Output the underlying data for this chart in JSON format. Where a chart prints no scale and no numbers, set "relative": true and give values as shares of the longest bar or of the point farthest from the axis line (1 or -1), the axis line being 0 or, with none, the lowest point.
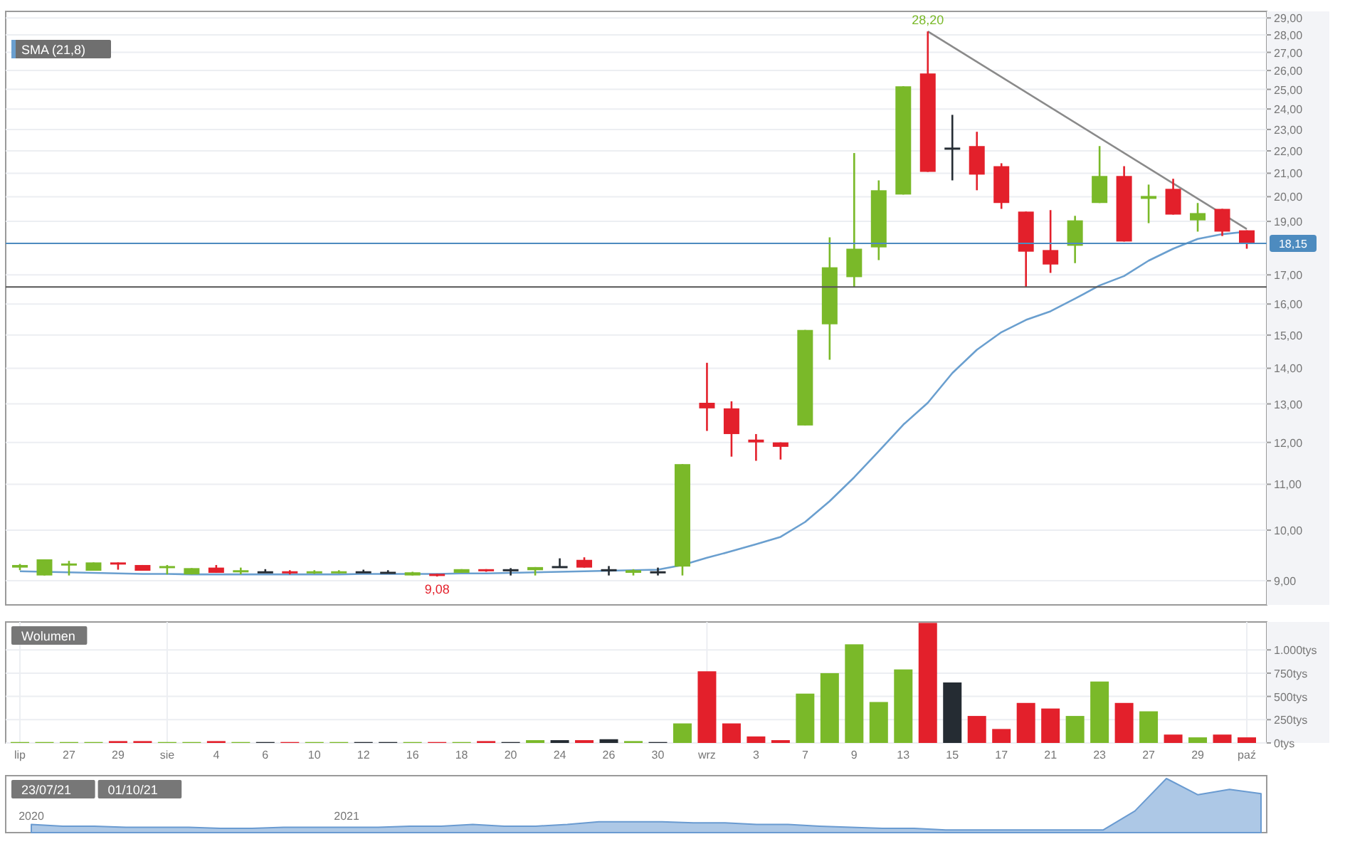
{
  "chart_data": [
    {
      "type": "candlestick",
      "categories": [
        null,
        null,
        null,
        null,
        null,
        null,
        null,
        null,
        null,
        null,
        null,
        null,
        null,
        null,
        null,
        null,
        null,
        null,
        null,
        null,
        null,
        null,
        null,
        null,
        null,
        null,
        null,
        null,
        null,
        null,
        null,
        null,
        null,
        null,
        null,
        null,
        null,
        null,
        null,
        null,
        null,
        null,
        null,
        null,
        null,
        null,
        null,
        null,
        null,
        null,
        null
      ],
      "ohlc": [
        [
          9.25,
          9.32,
          9.2,
          9.3
        ],
        [
          9.1,
          9.41,
          9.1,
          9.41
        ],
        [
          9.3,
          9.38,
          9.1,
          9.33
        ],
        [
          9.19,
          9.35,
          9.19,
          9.35
        ],
        [
          9.35,
          9.35,
          9.21,
          9.33
        ],
        [
          9.3,
          9.3,
          9.19,
          9.19
        ],
        [
          9.25,
          9.3,
          9.12,
          9.28
        ],
        [
          9.12,
          9.24,
          9.12,
          9.24
        ],
        [
          9.25,
          9.3,
          9.15,
          9.15
        ],
        [
          9.18,
          9.25,
          9.12,
          9.2
        ],
        [
          9.18,
          9.22,
          9.15,
          9.18
        ],
        [
          9.18,
          9.2,
          9.12,
          9.15
        ],
        [
          9.15,
          9.2,
          9.13,
          9.18
        ],
        [
          9.16,
          9.2,
          9.14,
          9.18
        ],
        [
          9.18,
          9.21,
          9.15,
          9.18
        ],
        [
          9.17,
          9.2,
          9.14,
          9.17
        ],
        [
          9.1,
          9.17,
          9.1,
          9.16
        ],
        [
          9.13,
          9.13,
          9.08,
          9.1
        ],
        [
          9.15,
          9.22,
          9.15,
          9.22
        ],
        [
          9.22,
          9.22,
          9.17,
          9.19
        ],
        [
          9.22,
          9.24,
          9.1,
          9.22
        ],
        [
          9.2,
          9.26,
          9.1,
          9.26
        ],
        [
          9.28,
          9.43,
          9.25,
          9.28
        ],
        [
          9.4,
          9.45,
          9.25,
          9.25
        ],
        [
          9.22,
          9.28,
          9.1,
          9.22
        ],
        [
          9.15,
          9.22,
          9.1,
          9.2
        ],
        [
          9.18,
          9.25,
          9.1,
          9.18
        ],
        [
          9.27,
          11.47,
          9.1,
          11.47
        ],
        [
          13.03,
          14.16,
          12.29,
          12.88
        ],
        [
          12.88,
          13.07,
          11.65,
          12.21
        ],
        [
          12.07,
          12.21,
          11.55,
          12.0
        ],
        [
          12.0,
          12.0,
          11.58,
          11.89
        ],
        [
          12.43,
          15.16,
          12.43,
          15.16
        ],
        [
          15.34,
          18.38,
          14.25,
          17.27
        ],
        [
          16.92,
          21.9,
          16.57,
          17.95
        ],
        [
          18.0,
          20.69,
          17.53,
          20.27
        ],
        [
          20.09,
          25.16,
          20.09,
          25.16
        ],
        [
          25.84,
          28.2,
          21.06,
          21.06
        ],
        [
          22.15,
          23.71,
          20.69,
          22.15
        ],
        [
          22.22,
          22.89,
          20.27,
          20.94
        ],
        [
          21.31,
          21.44,
          19.5,
          19.74
        ],
        [
          19.39,
          19.39,
          16.57,
          17.84
        ],
        [
          17.9,
          19.45,
          17.07,
          17.37
        ],
        [
          18.06,
          19.22,
          17.42,
          19.04
        ],
        [
          19.74,
          22.22,
          19.74,
          20.88
        ],
        [
          20.88,
          21.31,
          18.22,
          18.22
        ],
        [
          19.91,
          20.51,
          18.93,
          20.03
        ],
        [
          20.33,
          20.76,
          19.27,
          19.27
        ],
        [
          19.04,
          19.74,
          18.6,
          19.33
        ],
        [
          19.5,
          19.5,
          18.43,
          18.6
        ],
        [
          18.65,
          18.65,
          17.95,
          18.15
        ]
      ],
      "series": [
        {
          "name": "SMA (21,8)",
          "type": "line",
          "color": "#6a9fcf",
          "values": [
            9.18,
            9.17,
            9.16,
            9.15,
            9.14,
            9.13,
            9.13,
            9.12,
            9.12,
            9.12,
            9.12,
            9.12,
            9.12,
            9.12,
            9.13,
            9.13,
            9.13,
            9.13,
            9.14,
            9.14,
            9.15,
            9.16,
            9.17,
            9.18,
            9.19,
            9.2,
            9.21,
            9.3,
            9.44,
            9.57,
            9.71,
            9.86,
            10.17,
            10.62,
            11.16,
            11.78,
            12.45,
            13.03,
            13.86,
            14.55,
            15.09,
            15.48,
            15.76,
            16.18,
            16.63,
            16.96,
            17.51,
            17.95,
            18.32,
            18.5,
            18.6
          ]
        },
        {
          "type": "line",
          "color": "#8a8a8a",
          "values": [
            null,
            null,
            null,
            null,
            null,
            null,
            null,
            null,
            null,
            null,
            null,
            null,
            null,
            null,
            null,
            null,
            null,
            null,
            null,
            null,
            null,
            null,
            null,
            null,
            null,
            null,
            null,
            null,
            null,
            null,
            null,
            null,
            null,
            null,
            null,
            null,
            null,
            28.2,
            null,
            null,
            null,
            null,
            null,
            null,
            null,
            null,
            null,
            null,
            null,
            null,
            18.7
          ]
        }
      ],
      "ylim": [
        8.56,
        29.4
      ],
      "yticks": [
        {
          "value": 9,
          "label": "9,00"
        },
        {
          "value": 10,
          "label": "10,00"
        },
        {
          "value": 11,
          "label": "11,00"
        },
        {
          "value": 12,
          "label": "12,00"
        },
        {
          "value": 13,
          "label": "13,00"
        },
        {
          "value": 14,
          "label": "14,00"
        },
        {
          "value": 15,
          "label": "15,00"
        },
        {
          "value": 16,
          "label": "16,00"
        },
        {
          "value": 17,
          "label": "17,00"
        },
        {
          "value": 19,
          "label": "19,00"
        },
        {
          "value": 20,
          "label": "20,00"
        },
        {
          "value": 21,
          "label": "21,00"
        },
        {
          "value": 22,
          "label": "22,00"
        },
        {
          "value": 23,
          "label": "23,00"
        },
        {
          "value": 24,
          "label": "24,00"
        },
        {
          "value": 25,
          "label": "25,00"
        },
        {
          "value": 26,
          "label": "26,00"
        },
        {
          "value": 27,
          "label": "27,00"
        },
        {
          "value": 28,
          "label": "28,00"
        },
        {
          "value": 29,
          "label": "29,00"
        }
      ],
      "log": true,
      "grid": "y",
      "legend": "top left",
      "tick_labels": "y",
      "ref_lines": [
        {
          "axis": "y",
          "value": 18.15,
          "label": "18,15",
          "color": "#4d8bbf"
        },
        {
          "axis": "y",
          "value": 16.58,
          "label": null,
          "color": "#555555"
        }
      ],
      "annotations": [
        {
          "text": "28,20",
          "y": 28.2
        },
        {
          "text": "9,08",
          "y": 9.08
        }
      ]
    },
    {
      "type": "bar",
      "title": "Wolumen",
      "categories": [
        "lip",
        null,
        "27",
        null,
        "29",
        null,
        "sie",
        null,
        "4",
        null,
        "6",
        null,
        "10",
        null,
        "12",
        null,
        "16",
        null,
        "18",
        null,
        "20",
        null,
        "24",
        null,
        "26",
        null,
        "30",
        null,
        "wrz",
        null,
        "3",
        null,
        "7",
        null,
        "9",
        null,
        "13",
        null,
        "15",
        null,
        "17",
        null,
        "21",
        null,
        "23",
        null,
        "27",
        null,
        "29",
        null,
        "paź"
      ],
      "values": [
        10,
        10,
        10,
        10,
        20,
        20,
        10,
        10,
        20,
        10,
        10,
        10,
        10,
        10,
        10,
        10,
        10,
        10,
        10,
        20,
        10,
        30,
        30,
        30,
        40,
        20,
        10,
        210,
        770,
        210,
        70,
        30,
        530,
        750,
        1060,
        440,
        790,
        1290,
        650,
        290,
        150,
        430,
        370,
        290,
        660,
        430,
        340,
        90,
        60,
        90,
        60
      ],
      "colors": [
        "#7ab929",
        "#7ab929",
        "#7ab929",
        "#7ab929",
        "#e3202b",
        "#e3202b",
        "#7ab929",
        "#7ab929",
        "#e3202b",
        "#7ab929",
        "#252c33",
        "#e3202b",
        "#7ab929",
        "#7ab929",
        "#252c33",
        "#252c33",
        "#7ab929",
        "#e3202b",
        "#7ab929",
        "#e3202b",
        "#252c33",
        "#7ab929",
        "#252c33",
        "#e3202b",
        "#252c33",
        "#7ab929",
        "#252c33",
        "#7ab929",
        "#e3202b",
        "#e3202b",
        "#e3202b",
        "#e3202b",
        "#7ab929",
        "#7ab929",
        "#7ab929",
        "#7ab929",
        "#7ab929",
        "#e3202b",
        "#252c33",
        "#e3202b",
        "#e3202b",
        "#e3202b",
        "#e3202b",
        "#7ab929",
        "#7ab929",
        "#e3202b",
        "#7ab929",
        "#e3202b",
        "#7ab929",
        "#e3202b",
        "#e3202b"
      ],
      "ylim": [
        0,
        1300
      ],
      "yticks": [
        {
          "value": 0,
          "label": "0tys"
        },
        {
          "value": 250,
          "label": "250tys"
        },
        {
          "value": 500,
          "label": "500tys"
        },
        {
          "value": 750,
          "label": "750tys"
        },
        {
          "value": 1000,
          "label": "1.000tys"
        }
      ],
      "grid": true
    },
    {
      "type": "area",
      "relative": true,
      "color": "#6a9bd1",
      "categories": [
        "2020",
        null,
        null,
        null,
        null,
        null,
        null,
        null,
        null,
        null,
        "2021",
        null,
        null,
        null,
        null,
        null,
        null,
        null,
        null,
        null,
        null,
        null,
        null,
        null,
        null,
        null,
        null,
        null,
        null,
        null,
        null,
        null,
        null,
        null,
        null,
        null,
        null,
        null,
        null,
        null
      ],
      "values": [
        0.15,
        0.12,
        0.12,
        0.1,
        0.1,
        0.1,
        0.08,
        0.08,
        0.1,
        0.1,
        0.1,
        0.1,
        0.12,
        0.12,
        0.15,
        0.12,
        0.12,
        0.15,
        0.2,
        0.2,
        0.2,
        0.18,
        0.18,
        0.15,
        0.15,
        0.12,
        0.1,
        0.08,
        0.08,
        0.05,
        0.05,
        0.05,
        0.05,
        0.05,
        0.05,
        0.4,
        1,
        0.7,
        0.8,
        0.72
      ],
      "annotations": [
        "23/07/21",
        "01/10/21"
      ]
    }
  ]
}
